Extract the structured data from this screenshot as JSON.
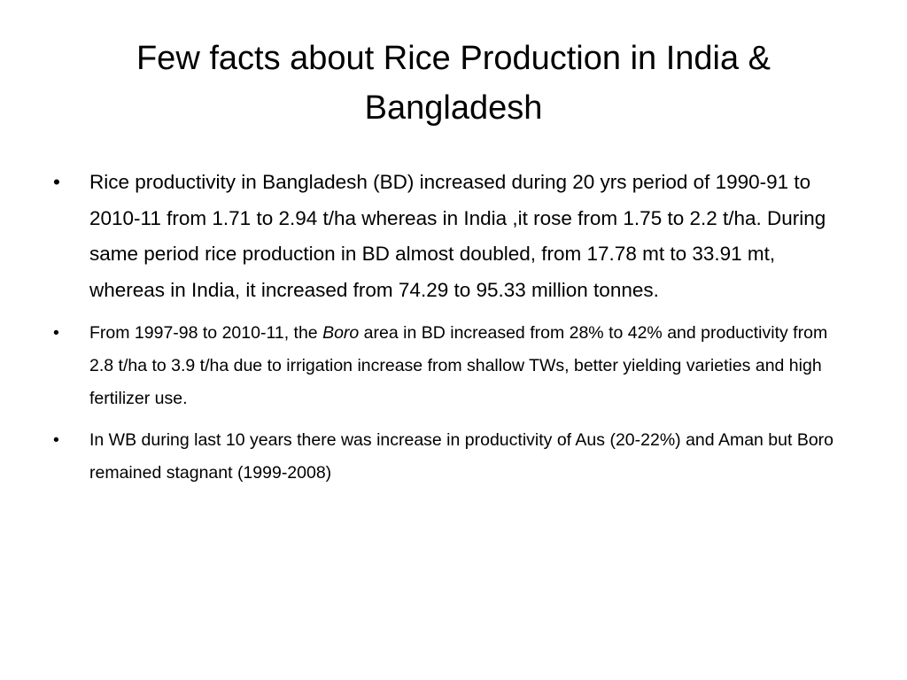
{
  "title": "Few facts about Rice Production in India & Bangladesh",
  "bullets": [
    "Rice productivity in Bangladesh (BD) increased during  20 yrs period of 1990-91 to 2010-11 from 1.71 to 2.94 t/ha whereas in India ,it rose from 1.75 to 2.2 t/ha. During same period rice production in BD almost doubled, from 17.78 mt to 33.91 mt, whereas in India, it increased from 74.29 to 95.33 million tonnes.",
    [
      "From 1997-98 to 2010-11, the ",
      "Boro",
      " area in BD increased from 28% to 42% and  productivity from 2.8 t/ha to 3.9 t/ha due to irrigation increase from shallow TWs, better yielding varieties and high fertilizer use."
    ],
    "In WB during last 10 years there was increase in productivity of  Aus (20-22%) and Aman but Boro remained stagnant (1999-2008)"
  ]
}
